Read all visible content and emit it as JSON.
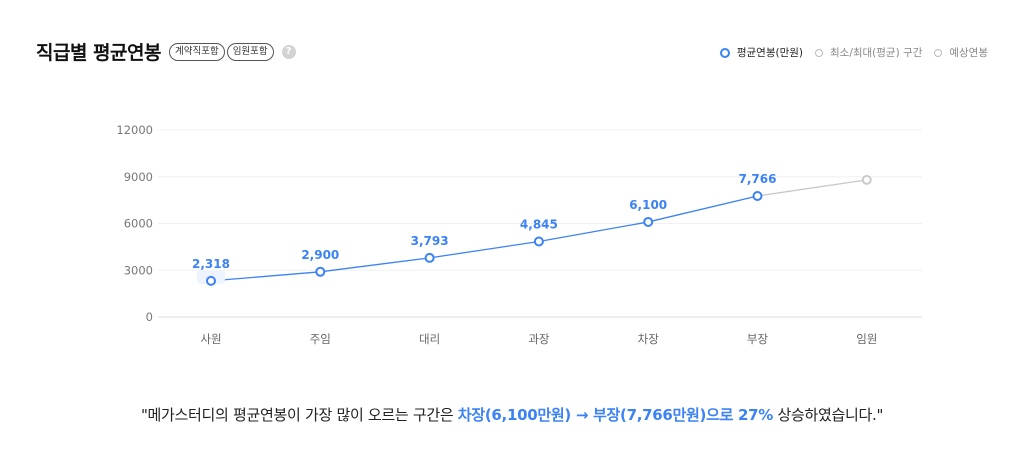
{
  "header": {
    "title": "직급별 평균연봉",
    "badges": [
      "계약직포함",
      "임원포함"
    ],
    "help_glyph": "?"
  },
  "legend": {
    "items": [
      {
        "label": "평균연봉(만원)",
        "active": true
      },
      {
        "label": "최소/최대(평균) 구간",
        "active": false
      },
      {
        "label": "예상연봉",
        "active": false
      }
    ]
  },
  "chart_data": {
    "type": "line",
    "categories": [
      "사원",
      "주임",
      "대리",
      "과장",
      "차장",
      "부장",
      "임원"
    ],
    "series": [
      {
        "name": "평균연봉(만원)",
        "values": [
          2318,
          2900,
          3793,
          4845,
          6100,
          7766,
          null
        ]
      },
      {
        "name": "예상연봉",
        "values": [
          null,
          null,
          null,
          null,
          null,
          7766,
          8800
        ]
      }
    ],
    "data_labels": [
      "2,318",
      "2,900",
      "3,793",
      "4,845",
      "6,100",
      "7,766"
    ],
    "yticks": [
      "0",
      "3000",
      "6000",
      "9000",
      "12000"
    ],
    "ylim": [
      0,
      12000
    ],
    "grid": true,
    "colors": {
      "main": "#3b82f6",
      "projected": "#c8c8c8"
    }
  },
  "conclusion": {
    "prefix": "\"메가스터디의 평균연봉이 가장 많이 오르는 구간은 ",
    "highlight": "차장(6,100만원) → 부장(7,766만원)으로 27%",
    "suffix": " 상승하였습니다.\""
  }
}
